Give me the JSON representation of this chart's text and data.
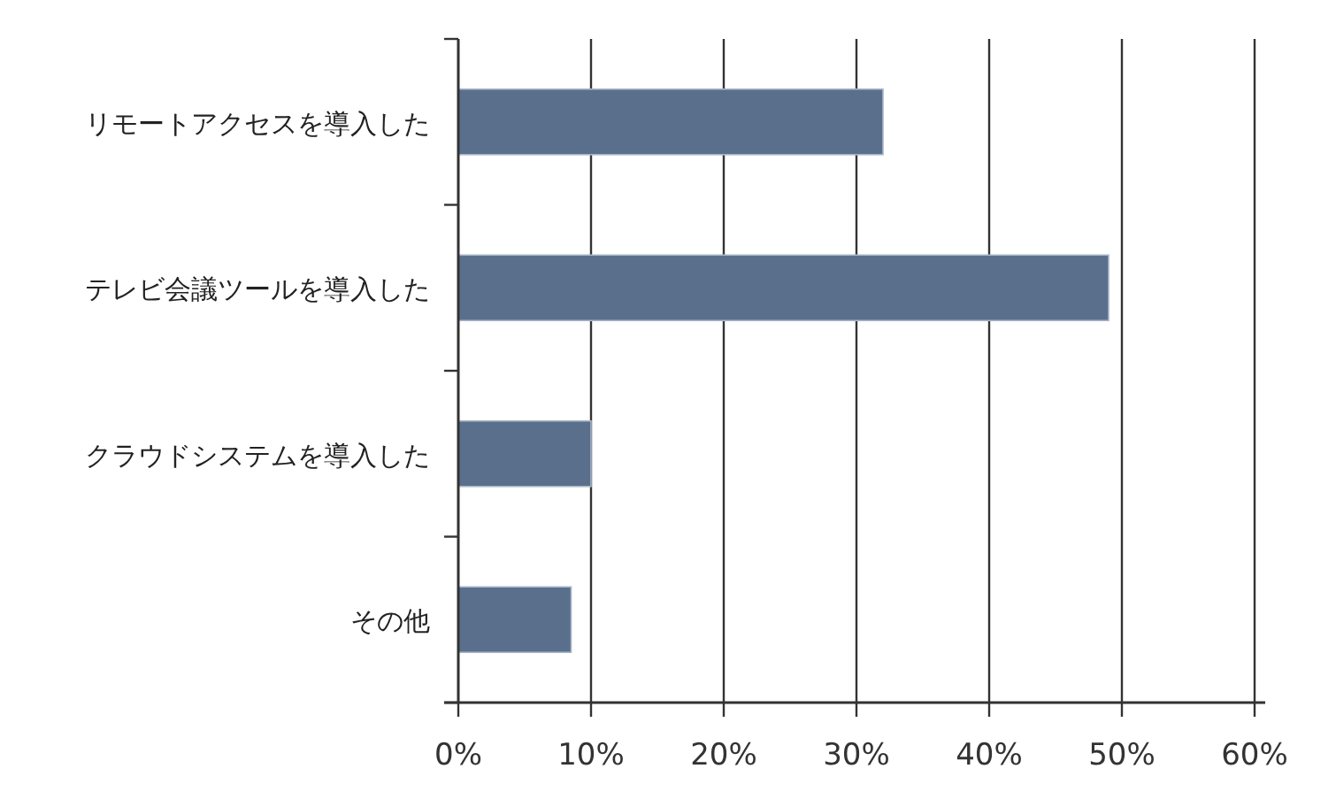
{
  "chart_data": {
    "type": "bar",
    "orientation": "horizontal",
    "categories": [
      "リモートアクセスを導入した",
      "テレビ会議ツールを導入した",
      "クラウドシステムを導入した",
      "その他"
    ],
    "values": [
      32,
      49,
      10,
      8.5
    ],
    "color": "#5a6f8c",
    "xlim": [
      0,
      60
    ],
    "xticks": [
      {
        "value": 0,
        "label": "0%"
      },
      {
        "value": 10,
        "label": "10%"
      },
      {
        "value": 20,
        "label": "20%"
      },
      {
        "value": 30,
        "label": "30%"
      },
      {
        "value": 40,
        "label": "40%"
      },
      {
        "value": 50,
        "label": "50%"
      },
      {
        "value": 60,
        "label": "60%"
      }
    ],
    "grid": "x"
  }
}
